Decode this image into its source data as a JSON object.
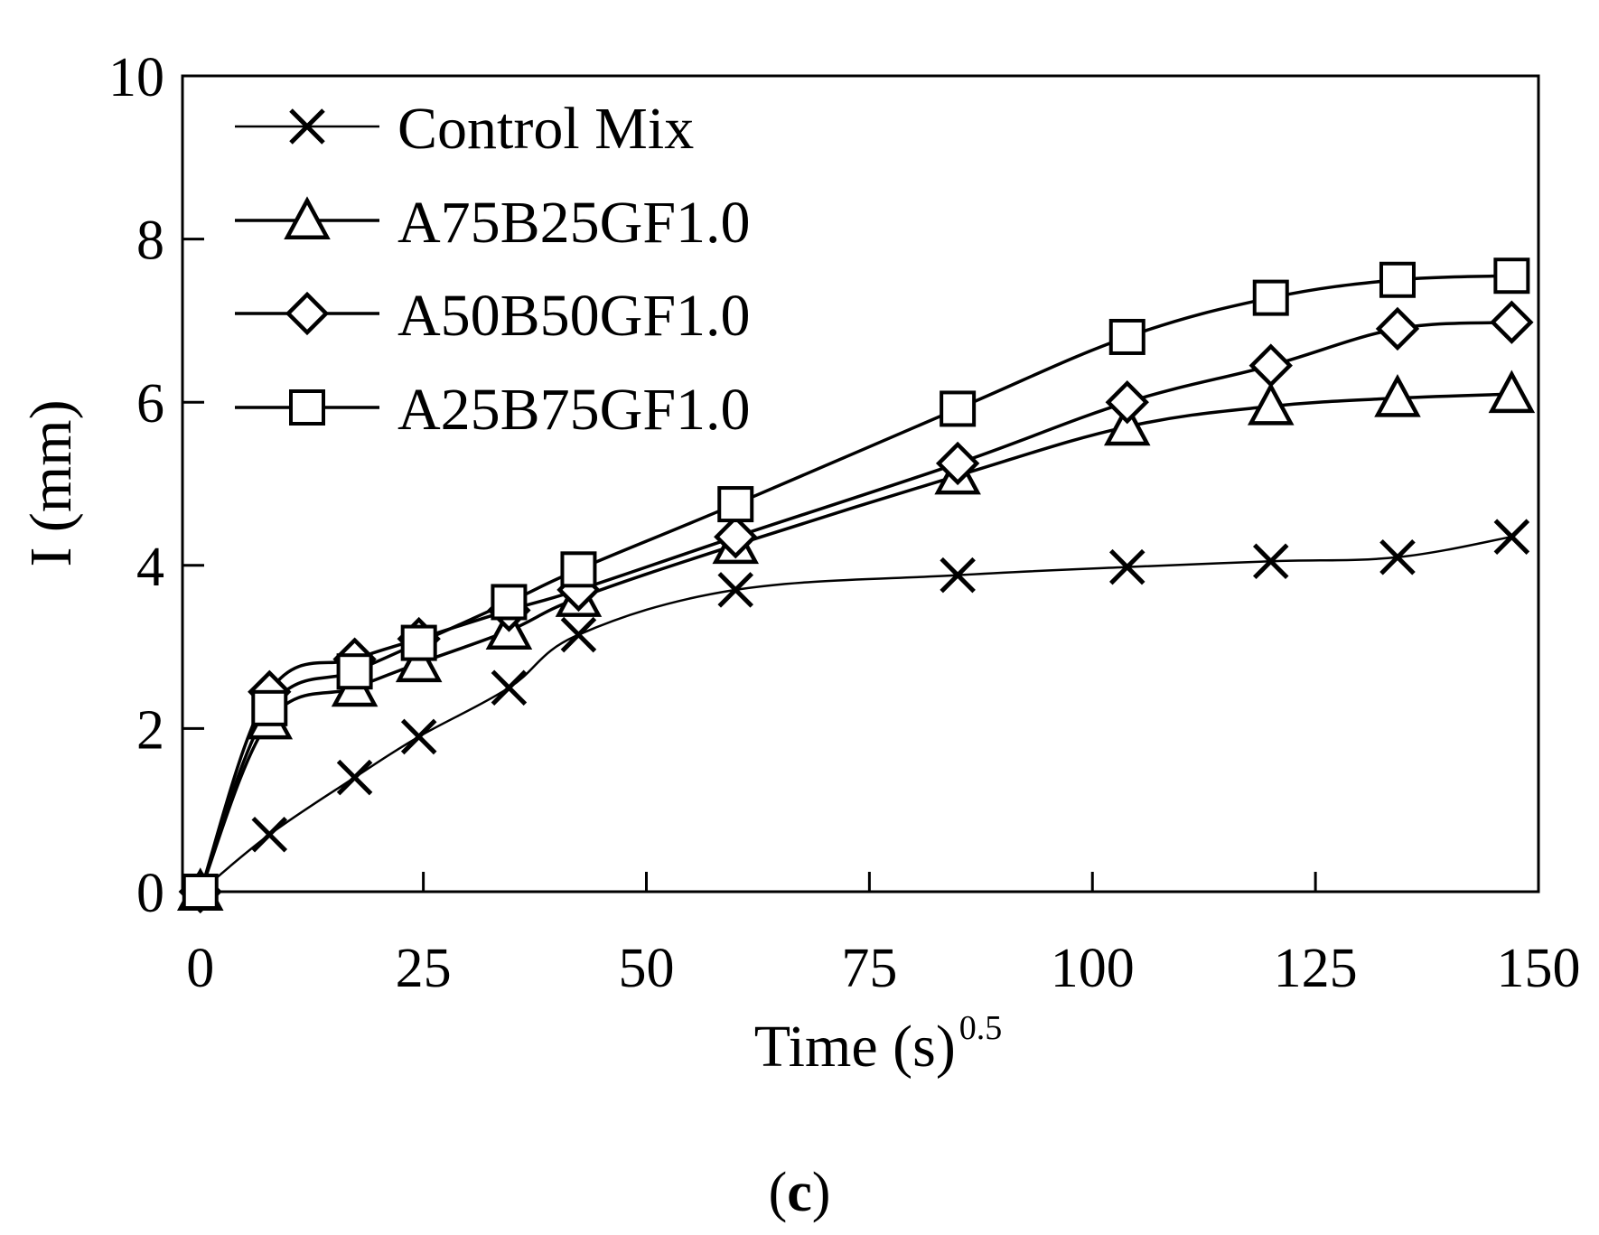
{
  "chart_data": {
    "type": "line",
    "title": "",
    "xlabel": "Time (s)",
    "xlabel_superscript": "0.5",
    "ylabel": "I (mm)",
    "xlim": [
      -2,
      150
    ],
    "ylim": [
      0,
      10
    ],
    "xticks": [
      0,
      25,
      50,
      75,
      100,
      125,
      150
    ],
    "yticks": [
      0,
      2,
      4,
      6,
      8,
      10
    ],
    "xtick_labels": [
      "0",
      "25",
      "50",
      "75",
      "100",
      "125",
      "150"
    ],
    "ytick_labels": [
      "0",
      "2",
      "4",
      "6",
      "8",
      "10"
    ],
    "grid": false,
    "legend_position": "top-left",
    "x": [
      0,
      7.75,
      17.3,
      24.5,
      34.6,
      42.4,
      60,
      84.9,
      103.9,
      120,
      134.2,
      147
    ],
    "series": [
      {
        "name": "Control Mix",
        "marker": "x",
        "values": [
          0,
          0.7,
          1.4,
          1.9,
          2.5,
          3.15,
          3.7,
          3.88,
          3.98,
          4.05,
          4.1,
          4.35
        ]
      },
      {
        "name": "A75B25GF1.0",
        "marker": "triangle",
        "values": [
          0,
          2.1,
          2.5,
          2.8,
          3.2,
          3.6,
          4.25,
          5.1,
          5.7,
          5.95,
          6.05,
          6.1
        ]
      },
      {
        "name": "A50B50GF1.0",
        "marker": "diamond",
        "values": [
          0,
          2.45,
          2.85,
          3.1,
          3.45,
          3.7,
          4.35,
          5.25,
          6.0,
          6.45,
          6.9,
          6.98
        ]
      },
      {
        "name": "A25B75GF1.0",
        "marker": "square",
        "values": [
          0,
          2.25,
          2.7,
          3.05,
          3.55,
          3.95,
          4.75,
          5.92,
          6.8,
          7.28,
          7.5,
          7.55
        ]
      }
    ]
  },
  "caption": {
    "open": "(",
    "letter": "c",
    "close": ")"
  }
}
